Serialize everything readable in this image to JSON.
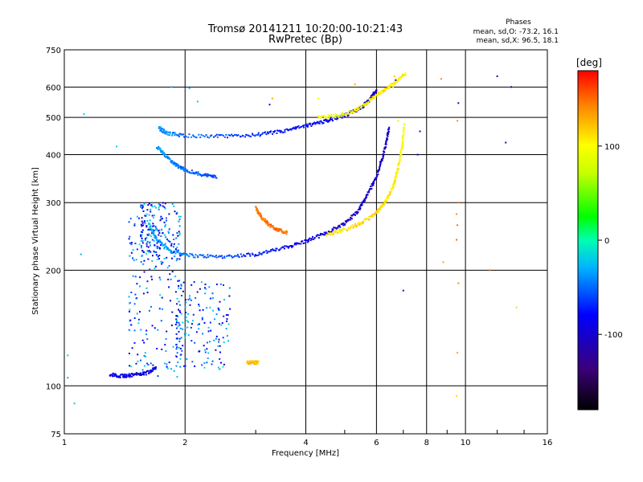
{
  "chart_data": {
    "type": "scatter",
    "title": "Tromsø 20141211 10:20:00-10:21:43",
    "subtitle": "RwPretec (Bp)",
    "xlabel": "Frequency [MHz]",
    "ylabel": "Stationary phase Virtual Height [km]",
    "x_scale": "log",
    "y_scale": "log",
    "xlim": [
      1,
      16
    ],
    "ylim": [
      75,
      750
    ],
    "x_ticks": [
      1,
      2,
      4,
      6,
      8,
      10,
      16
    ],
    "y_ticks": [
      75,
      100,
      200,
      300,
      400,
      500,
      600,
      750
    ],
    "grid": true,
    "stats": {
      "heading": "Phases",
      "line_o": "mean, sd,O: -73.2, 16.1",
      "line_x": "mean, sd,X:  96.5, 18.1"
    },
    "colorbar": {
      "label": "[deg]",
      "range": [
        -180,
        180
      ],
      "ticks": [
        100,
        0,
        -100
      ]
    },
    "series": [
      {
        "name": "O-F2 trace",
        "style": "curve",
        "points": [
          [
            1.62,
            265
          ],
          [
            1.7,
            240
          ],
          [
            1.85,
            224
          ],
          [
            2.1,
            218
          ],
          [
            2.5,
            217
          ],
          [
            3.0,
            220
          ],
          [
            3.5,
            228
          ],
          [
            4.0,
            238
          ],
          [
            4.5,
            250
          ],
          [
            5.0,
            265
          ],
          [
            5.4,
            285
          ],
          [
            5.7,
            315
          ],
          [
            6.0,
            350
          ],
          [
            6.2,
            390
          ],
          [
            6.35,
            430
          ],
          [
            6.45,
            470
          ]
        ],
        "phase": [
          -20,
          -30,
          -40,
          -50,
          -60,
          -70,
          -80,
          -90,
          -95,
          -100,
          -100,
          -100,
          -100,
          -100,
          -100,
          -100
        ]
      },
      {
        "name": "X-F2 trace",
        "style": "curve",
        "points": [
          [
            4.5,
            248
          ],
          [
            5.0,
            255
          ],
          [
            5.5,
            265
          ],
          [
            6.0,
            282
          ],
          [
            6.3,
            300
          ],
          [
            6.6,
            330
          ],
          [
            6.8,
            370
          ],
          [
            6.95,
            420
          ],
          [
            7.05,
            480
          ]
        ],
        "phase": [
          105,
          110,
          115,
          115,
          110,
          110,
          105,
          100,
          100
        ]
      },
      {
        "name": "F1 cusp",
        "style": "curve",
        "points": [
          [
            3.0,
            290
          ],
          [
            3.1,
            275
          ],
          [
            3.25,
            262
          ],
          [
            3.4,
            255
          ],
          [
            3.6,
            250
          ]
        ],
        "phase": [
          140,
          145,
          150,
          150,
          140
        ]
      },
      {
        "name": "O-F2 multihop",
        "style": "curve",
        "points": [
          [
            1.72,
            470
          ],
          [
            1.8,
            455
          ],
          [
            2.0,
            448
          ],
          [
            2.5,
            446
          ],
          [
            3.0,
            450
          ],
          [
            3.5,
            460
          ],
          [
            4.0,
            475
          ],
          [
            4.5,
            490
          ],
          [
            5.0,
            505
          ],
          [
            5.5,
            530
          ],
          [
            5.8,
            560
          ],
          [
            6.0,
            590
          ]
        ],
        "phase": [
          -40,
          -40,
          -50,
          -60,
          -70,
          -75,
          -80,
          -85,
          -90,
          -95,
          -100,
          -100
        ]
      },
      {
        "name": "X-F2 multihop",
        "style": "curve",
        "points": [
          [
            4.3,
            500
          ],
          [
            4.8,
            505
          ],
          [
            5.3,
            520
          ],
          [
            5.8,
            555
          ],
          [
            6.3,
            590
          ],
          [
            6.7,
            620
          ],
          [
            7.1,
            650
          ]
        ],
        "phase": [
          95,
          95,
          100,
          100,
          110,
          105,
          100
        ]
      },
      {
        "name": "F trace branch",
        "style": "curve",
        "points": [
          [
            1.7,
            420
          ],
          [
            1.8,
            395
          ],
          [
            1.9,
            375
          ],
          [
            2.0,
            365
          ],
          [
            2.2,
            355
          ],
          [
            2.4,
            350
          ]
        ],
        "phase": [
          -30,
          -40,
          -45,
          -50,
          -55,
          -60
        ]
      },
      {
        "name": "E-layer trace",
        "style": "curve",
        "points": [
          [
            1.3,
            107
          ],
          [
            1.4,
            106
          ],
          [
            1.5,
            107
          ],
          [
            1.6,
            108
          ],
          [
            1.7,
            112
          ]
        ],
        "phase": [
          -85,
          -90,
          -95,
          -95,
          -90
        ]
      },
      {
        "name": "Es",
        "style": "curve",
        "points": [
          [
            2.85,
            115
          ],
          [
            2.95,
            115
          ],
          [
            3.05,
            115
          ]
        ],
        "phase": [
          120,
          125,
          120
        ]
      },
      {
        "name": "Spread echoes",
        "style": "cloud",
        "boxes": [
          [
            1.45,
            1.95,
            105,
            280
          ],
          [
            1.9,
            2.6,
            110,
            190
          ],
          [
            1.55,
            1.95,
            210,
            300
          ]
        ],
        "phase": [
          -110,
          -10
        ]
      },
      {
        "name": "Scattered points",
        "style": "points",
        "points": [
          [
            1.02,
            120
          ],
          [
            1.06,
            90
          ],
          [
            1.02,
            105
          ],
          [
            1.1,
            220
          ],
          [
            1.12,
            510
          ],
          [
            1.35,
            420
          ],
          [
            1.85,
            600
          ],
          [
            2.05,
            595
          ],
          [
            2.15,
            550
          ],
          [
            3.3,
            560
          ],
          [
            3.25,
            540
          ],
          [
            4.3,
            560
          ],
          [
            5.3,
            610
          ],
          [
            6.6,
            600
          ],
          [
            6.65,
            640
          ],
          [
            6.7,
            625
          ],
          [
            6.8,
            490
          ],
          [
            7.6,
            400
          ],
          [
            7.7,
            460
          ],
          [
            8.7,
            630
          ],
          [
            9.6,
            545
          ],
          [
            9.55,
            490
          ],
          [
            9.6,
            300
          ],
          [
            9.5,
            280
          ],
          [
            9.55,
            262
          ],
          [
            9.5,
            240
          ],
          [
            9.6,
            185
          ],
          [
            9.55,
            122
          ],
          [
            9.5,
            94
          ],
          [
            8.8,
            210
          ],
          [
            7.0,
            177
          ],
          [
            11.5,
            200
          ],
          [
            12.0,
            640
          ],
          [
            12.6,
            430
          ],
          [
            13.0,
            600
          ],
          [
            13.4,
            160
          ]
        ],
        "phase": [
          -20,
          -20,
          -30,
          -30,
          -20,
          -20,
          -30,
          -20,
          -20,
          130,
          -100,
          100,
          130,
          110,
          120,
          -100,
          110,
          -100,
          -110,
          140,
          -120,
          140,
          150,
          140,
          150,
          150,
          140,
          130,
          110,
          130,
          -130,
          150,
          -110,
          -120,
          -110,
          115
        ]
      }
    ]
  }
}
